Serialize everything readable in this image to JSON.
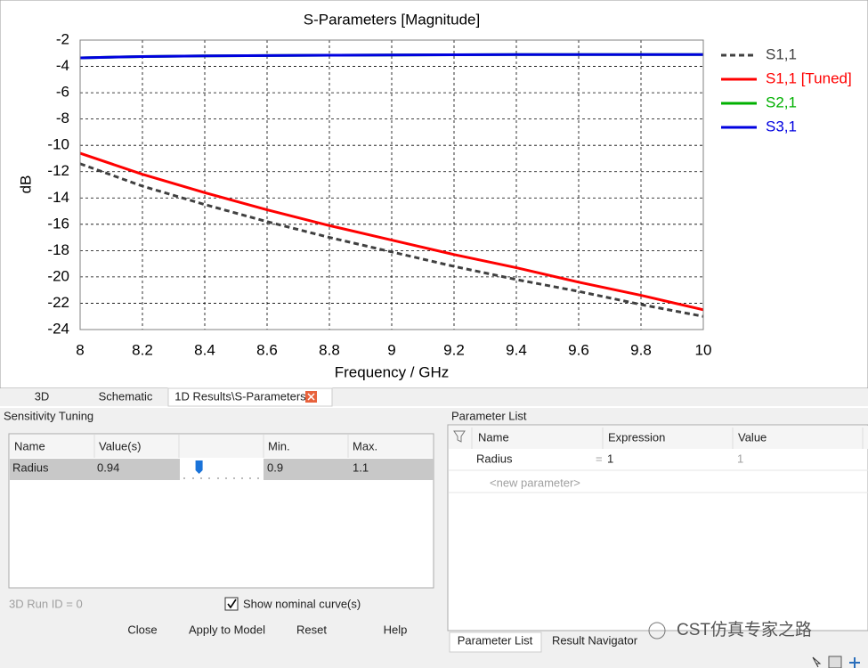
{
  "chart_data": {
    "type": "line",
    "title": "S-Parameters [Magnitude]",
    "x_label": "Frequency / GHz",
    "y_label": "dB",
    "x": [
      8,
      8.2,
      8.4,
      8.6,
      8.8,
      9,
      9.2,
      9.4,
      9.6,
      9.8,
      10
    ],
    "series": [
      {
        "name": "S1,1",
        "color": "#404040",
        "line_style": "dashed",
        "values": [
          -11.4,
          -13.1,
          -14.5,
          -15.8,
          -17.0,
          -18.1,
          -19.2,
          -20.2,
          -21.1,
          -22.1,
          -23.0
        ]
      },
      {
        "name": "S1,1 [Tuned]",
        "color": "#ff0000",
        "line_style": "solid",
        "values": [
          -10.6,
          -12.2,
          -13.6,
          -14.9,
          -16.1,
          -17.2,
          -18.3,
          -19.3,
          -20.4,
          -21.4,
          -22.5
        ]
      },
      {
        "name": "S2,1",
        "color": "#00b000",
        "line_style": "solid",
        "values": [
          -3.35,
          -3.25,
          -3.2,
          -3.18,
          -3.15,
          -3.13,
          -3.12,
          -3.1,
          -3.1,
          -3.1,
          -3.1
        ]
      },
      {
        "name": "S3,1",
        "color": "#0000e0",
        "line_style": "solid",
        "values": [
          -3.35,
          -3.25,
          -3.2,
          -3.18,
          -3.15,
          -3.13,
          -3.12,
          -3.1,
          -3.1,
          -3.1,
          -3.1
        ]
      }
    ],
    "xlim": [
      8,
      10
    ],
    "xticks": [
      8,
      8.2,
      8.4,
      8.6,
      8.8,
      9,
      9.2,
      9.4,
      9.6,
      9.8,
      10
    ],
    "ylim": [
      -24,
      -2
    ],
    "yticks": [
      -2,
      -4,
      -6,
      -8,
      -10,
      -12,
      -14,
      -16,
      -18,
      -20,
      -22,
      -24
    ],
    "grid": true,
    "legend": "right"
  },
  "tabs": [
    "3D",
    "Schematic",
    "1D Results\\S-Parameters"
  ],
  "sensitivity": {
    "title": "Sensitivity Tuning",
    "columns": [
      "Name",
      "Value(s)",
      "Min.",
      "Max."
    ],
    "rows": [
      {
        "name": "Radius",
        "value": 0.94,
        "min": 0.9,
        "max": 1.1
      }
    ],
    "run_id": "3D Run ID = 0",
    "checkbox": "Show nominal curve(s)",
    "buttons": [
      "Close",
      "Apply to Model",
      "Reset",
      "Help"
    ]
  },
  "parameters": {
    "title": "Parameter List",
    "columns": [
      "Name",
      "Expression",
      "Value"
    ],
    "rows": [
      {
        "name": "Radius",
        "assign": "=",
        "expression": "1",
        "value": "1"
      }
    ],
    "new_row": "<new parameter>",
    "tabs": [
      "Parameter List",
      "Result Navigator"
    ]
  },
  "watermark": "CST仿真专家之路"
}
